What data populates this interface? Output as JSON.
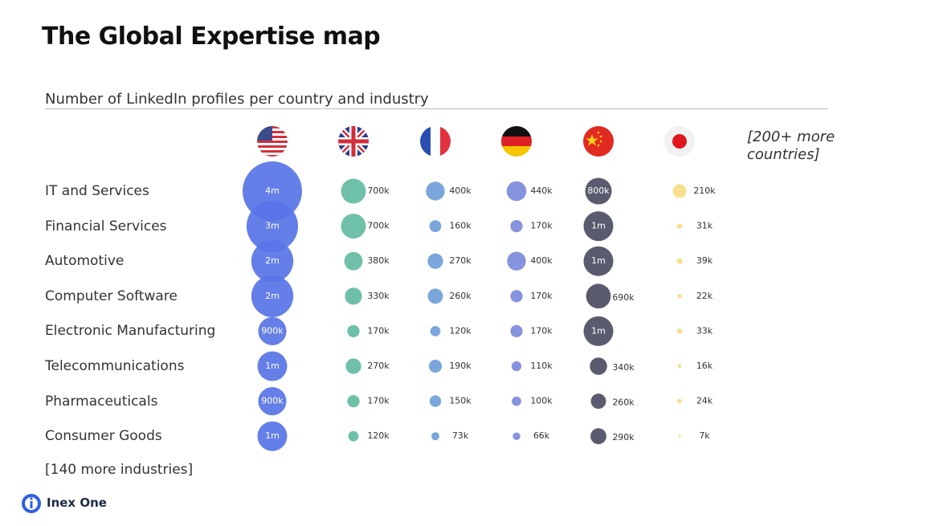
{
  "chart_data": {
    "type": "bubble",
    "title": "The Global Expertise map",
    "subtitle": "Number of LinkedIn profiles per country and industry",
    "categories": [
      "IT and Services",
      "Financial Services",
      "Automotive",
      "Computer Software",
      "Electronic Manufacturing",
      "Telecommunications",
      "Pharmaceuticals",
      "Consumer Goods"
    ],
    "series": [
      {
        "color": "#5874e6",
        "values": [
          4000000,
          3000000,
          2000000,
          2000000,
          900000,
          1000000,
          900000,
          1000000
        ],
        "value_labels": [
          "4m",
          "3m",
          "2m",
          "2m",
          "900k",
          "1m",
          "900k",
          "1m"
        ]
      },
      {
        "color": "#6fc0a8",
        "values": [
          700000,
          700000,
          380000,
          330000,
          170000,
          270000,
          170000,
          120000
        ],
        "value_labels": [
          "700k",
          "700k",
          "380k",
          "330k",
          "170k",
          "270k",
          "170k",
          "120k"
        ]
      },
      {
        "color": "#7aa6dc",
        "values": [
          400000,
          160000,
          270000,
          260000,
          120000,
          190000,
          150000,
          73000
        ],
        "value_labels": [
          "400k",
          "160k",
          "270k",
          "260k",
          "120k",
          "190k",
          "150k",
          "73k"
        ]
      },
      {
        "color": "#8693de",
        "values": [
          440000,
          170000,
          400000,
          170000,
          170000,
          110000,
          100000,
          66000
        ],
        "value_labels": [
          "440k",
          "170k",
          "400k",
          "170k",
          "170k",
          "110k",
          "100k",
          "66k"
        ]
      },
      {
        "color": "#5b5b6f",
        "values": [
          800000,
          1000000,
          1000000,
          690000,
          1000000,
          340000,
          260000,
          290000
        ],
        "value_labels": [
          "800k",
          "1m",
          "1m",
          "690k",
          "1m",
          "340k",
          "260k",
          "290k"
        ]
      },
      {
        "color": "#f7df8e",
        "values": [
          210000,
          31000,
          39000,
          22000,
          33000,
          16000,
          24000,
          7000
        ],
        "value_labels": [
          "210k",
          "31k",
          "39k",
          "22k",
          "33k",
          "16k",
          "24k",
          "7k"
        ]
      }
    ],
    "more_industries": "[140 more industries]",
    "more_countries": "[200+ more countries]"
  },
  "brand": "Inex One"
}
